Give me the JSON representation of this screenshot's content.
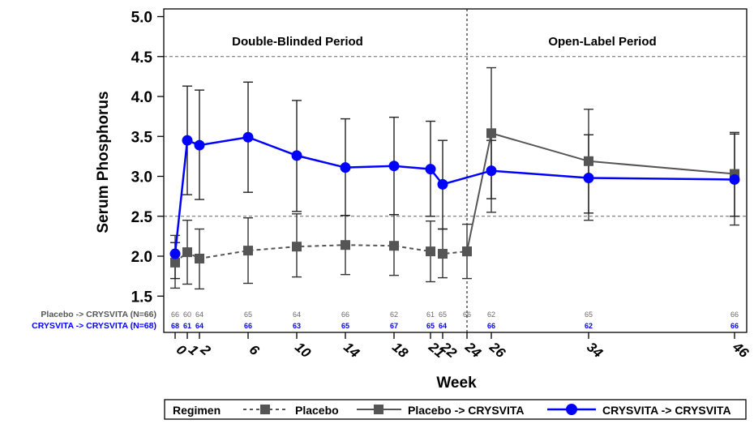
{
  "chart_data": {
    "type": "line",
    "title": "",
    "xlabel": "Week",
    "ylabel": "Serum Phosphorus",
    "ylim": [
      1.5,
      5.0
    ],
    "yticks": [
      "1.5",
      "2.0",
      "2.5",
      "3.0",
      "3.5",
      "4.0",
      "4.5",
      "5.0"
    ],
    "ytick_values": [
      1.5,
      2.0,
      2.5,
      3.0,
      3.5,
      4.0,
      4.5,
      5.0
    ],
    "xticks": [
      0,
      1,
      2,
      6,
      10,
      14,
      18,
      21,
      22,
      24,
      26,
      34,
      46
    ],
    "xtick_labels": [
      "0",
      "1",
      "2",
      "6",
      "10",
      "14",
      "18",
      "21",
      "22",
      "24",
      "26",
      "34",
      "46"
    ],
    "reference_lines": [
      2.5,
      4.5
    ],
    "period_divider_week": 24,
    "period_labels": [
      "Double-Blinded Period",
      "Open-Label Period"
    ],
    "grid": false,
    "legend_placement": "bottom",
    "legend_title": "Regimen",
    "series": [
      {
        "name": "Placebo",
        "color": "#555555",
        "line_style": "dashed",
        "marker": "square",
        "x": [
          0,
          1,
          2,
          6,
          10,
          14,
          18,
          21,
          22,
          24
        ],
        "values": [
          1.92,
          2.05,
          1.97,
          2.07,
          2.12,
          2.14,
          2.13,
          2.06,
          2.03,
          2.06
        ],
        "upper": [
          2.26,
          2.45,
          2.34,
          2.48,
          2.53,
          2.51,
          2.52,
          2.44,
          2.34,
          2.4
        ],
        "lower": [
          1.6,
          1.65,
          1.59,
          1.66,
          1.74,
          1.77,
          1.76,
          1.68,
          1.73,
          1.72
        ]
      },
      {
        "name": "Placebo -> CRYSVITA",
        "color": "#555555",
        "line_style": "solid",
        "marker": "square",
        "x": [
          24,
          26,
          34,
          46
        ],
        "values": [
          2.06,
          3.54,
          3.19,
          3.03
        ],
        "upper": [
          null,
          4.36,
          3.84,
          3.55
        ],
        "lower": [
          null,
          2.55,
          2.45,
          2.39
        ]
      },
      {
        "name": "CRYSVITA -> CRYSVITA",
        "color": "#0000FF",
        "line_style": "solid",
        "marker": "circle",
        "x": [
          0,
          1,
          2,
          6,
          10,
          14,
          18,
          21,
          22,
          26,
          34,
          46
        ],
        "values": [
          2.03,
          3.45,
          3.39,
          3.49,
          3.26,
          3.11,
          3.13,
          3.09,
          2.9,
          3.07,
          2.98,
          2.96
        ],
        "upper": [
          2.17,
          4.13,
          4.08,
          4.18,
          3.95,
          3.72,
          3.74,
          3.69,
          3.45,
          3.45,
          3.52,
          3.53
        ],
        "lower": [
          1.72,
          2.77,
          2.71,
          2.8,
          2.56,
          2.51,
          2.52,
          2.5,
          2.34,
          2.72,
          2.54,
          2.5
        ]
      }
    ],
    "at_risk": [
      {
        "label": "Placebo -> CRYSVITA (N=66)",
        "color": "#555555",
        "x": [
          0,
          1,
          2,
          6,
          10,
          14,
          18,
          21,
          22,
          24,
          26,
          34,
          46
        ],
        "counts": [
          "66",
          "60",
          "64",
          "65",
          "64",
          "66",
          "62",
          "61",
          "65",
          "66",
          "62",
          "65",
          "66"
        ]
      },
      {
        "label": "CRYSVITA -> CRYSVITA (N=68)",
        "color": "#0000FF",
        "x": [
          0,
          1,
          2,
          6,
          10,
          14,
          18,
          21,
          22,
          26,
          34,
          46
        ],
        "counts": [
          "68",
          "61",
          "64",
          "66",
          "63",
          "65",
          "67",
          "65",
          "64",
          "66",
          "62",
          "66"
        ]
      }
    ]
  }
}
